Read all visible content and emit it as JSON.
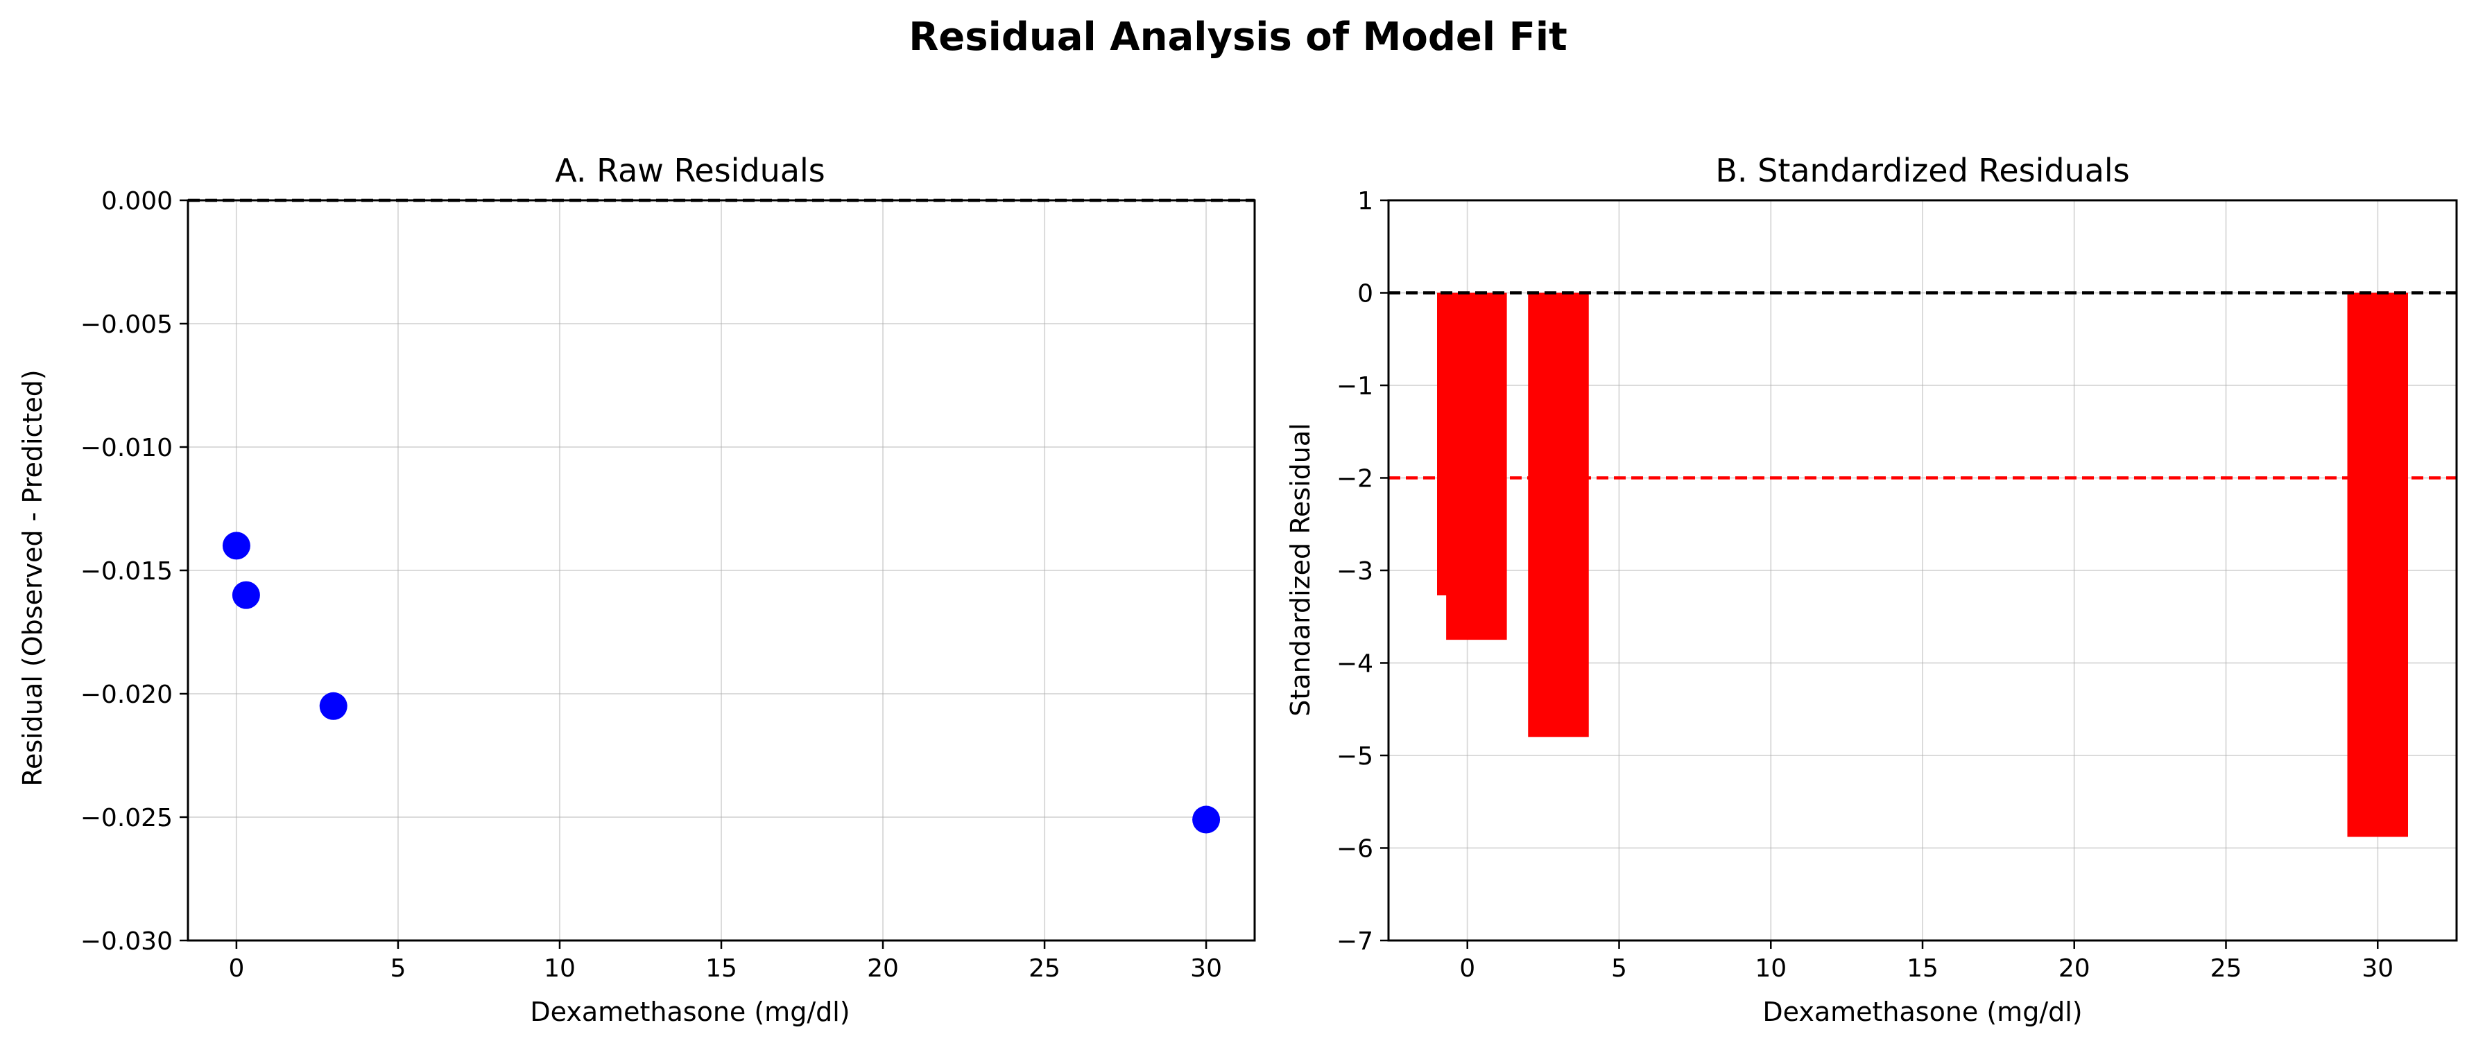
{
  "figure": {
    "title": "Residual Analysis of Model Fit"
  },
  "chart_data": [
    {
      "type": "scatter",
      "title": "A. Raw Residuals",
      "xlabel": "Dexamethasone (mg/dl)",
      "ylabel": "Residual (Observed - Predicted)",
      "xlim": [
        -1.5,
        31.5
      ],
      "ylim": [
        -0.03,
        0.0
      ],
      "xticks": [
        0,
        5,
        10,
        15,
        20,
        25,
        30
      ],
      "xtick_labels": [
        "0",
        "5",
        "10",
        "15",
        "20",
        "25",
        "30"
      ],
      "yticks": [
        0.0,
        -0.005,
        -0.01,
        -0.015,
        -0.02,
        -0.025,
        -0.03
      ],
      "ytick_labels": [
        "0.000",
        "−0.005",
        "−0.010",
        "−0.015",
        "−0.020",
        "−0.025",
        "−0.030"
      ],
      "grid": true,
      "points": [
        {
          "x": 0,
          "y": -0.014
        },
        {
          "x": 0.3,
          "y": -0.016
        },
        {
          "x": 3,
          "y": -0.0205
        },
        {
          "x": 30,
          "y": -0.0251
        }
      ],
      "reference_lines": [
        {
          "y": 0,
          "style": "dashed",
          "color": "#000000"
        }
      ],
      "colors": {
        "points": "#0000ff"
      }
    },
    {
      "type": "bar",
      "title": "B. Standardized Residuals",
      "xlabel": "Dexamethasone (mg/dl)",
      "ylabel": "Standardized Residual",
      "xlim": [
        -2.6,
        32.6
      ],
      "ylim": [
        -7,
        1
      ],
      "xticks": [
        0,
        5,
        10,
        15,
        20,
        25,
        30
      ],
      "xtick_labels": [
        "0",
        "5",
        "10",
        "15",
        "20",
        "25",
        "30"
      ],
      "yticks": [
        1,
        0,
        -1,
        -2,
        -3,
        -4,
        -5,
        -6,
        -7
      ],
      "ytick_labels": [
        "1",
        "0",
        "−1",
        "−2",
        "−3",
        "−4",
        "−5",
        "−6",
        "−7"
      ],
      "grid": true,
      "bars": [
        {
          "x": 0,
          "value": -3.27,
          "width": 2
        },
        {
          "x": 0.3,
          "value": -3.75,
          "width": 2
        },
        {
          "x": 3,
          "value": -4.8,
          "width": 2
        },
        {
          "x": 30,
          "value": -5.88,
          "width": 2
        }
      ],
      "reference_lines": [
        {
          "y": 0,
          "style": "dashed",
          "color": "#000000"
        },
        {
          "y": -2,
          "style": "dashed",
          "color": "#ff0000"
        }
      ],
      "colors": {
        "bars": "#ff0000"
      }
    }
  ]
}
